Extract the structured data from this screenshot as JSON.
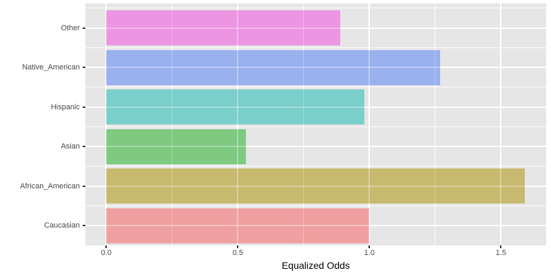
{
  "chart_data": {
    "type": "bar",
    "orientation": "horizontal",
    "title": "",
    "xlabel": "Equalized Odds",
    "ylabel": "",
    "categories": [
      "Other",
      "Native_American",
      "Hispanic",
      "Asian",
      "African_American",
      "Caucasian"
    ],
    "values": [
      0.89,
      1.27,
      0.98,
      0.53,
      1.59,
      1.0
    ],
    "bar_colors_apparent": [
      "#EC95E2",
      "#9AB1EF",
      "#7BCFCB",
      "#7DCA80",
      "#C7BA6E",
      "#F0A0A0"
    ],
    "bar_colors_base": [
      "#F564E3",
      "#619CFF",
      "#00BFC4",
      "#00BA38",
      "#B79F00",
      "#F8766D"
    ],
    "x_tick_labels": [
      "0.0",
      "0.5",
      "1.0",
      "1.5"
    ],
    "x_tick_values": [
      0,
      0.5,
      1.0,
      1.5
    ],
    "x_minor_values": [
      0.25,
      0.75,
      1.25
    ],
    "xlim": [
      -0.08,
      1.67
    ],
    "grid": "on",
    "legend": "none",
    "panel_background": "#E6E6E6",
    "grid_color": "#FFFFFF",
    "axis_text_color": "#474747",
    "axis_title_color": "#000000"
  }
}
